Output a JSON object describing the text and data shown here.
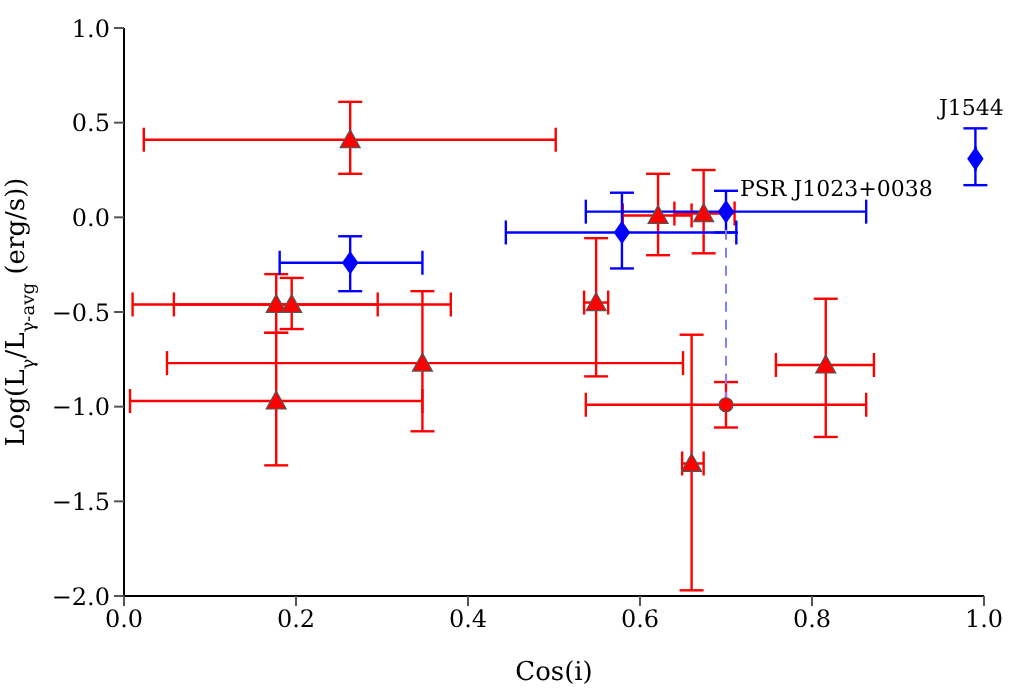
{
  "chart_data": {
    "type": "scatter",
    "xlabel": "Cos(i)",
    "ylabel": "Log(L$_{γ}$/L$_{γ-avg}$ (erg/s))",
    "xlim": [
      0,
      1
    ],
    "ylim": [
      -2,
      1
    ],
    "xticks": [
      {
        "value": 0,
        "label": "0.0"
      },
      {
        "value": 0.2,
        "label": "0.2"
      },
      {
        "value": 0.4,
        "label": "0.4"
      },
      {
        "value": 0.6,
        "label": "0.6"
      },
      {
        "value": 0.8,
        "label": "0.8"
      },
      {
        "value": 1,
        "label": "1.0"
      }
    ],
    "yticks": [
      {
        "value": -2,
        "label": "−2.0"
      },
      {
        "value": -1.5,
        "label": "−1.5"
      },
      {
        "value": -1,
        "label": "−1.0"
      },
      {
        "value": -0.5,
        "label": "−0.5"
      },
      {
        "value": 0,
        "label": "0.0"
      },
      {
        "value": 0.5,
        "label": "0.5"
      },
      {
        "value": 1,
        "label": "1.0"
      }
    ],
    "series": [
      {
        "type": "line",
        "color": "#8080ff",
        "line_style": "dashed",
        "marker": "none",
        "x": [
          0.7,
          0.7
        ],
        "values": [
          0.03,
          -0.99
        ]
      },
      {
        "color": "#ff0000",
        "marker": "triangle",
        "x": [
          0.263,
          0.177,
          0.195,
          0.347,
          0.177,
          0.549,
          0.621,
          0.674,
          0.66,
          0.816
        ],
        "values": [
          0.41,
          -0.46,
          -0.46,
          -0.77,
          -0.97,
          -0.45,
          0.01,
          0.02,
          -1.3,
          -0.78
        ],
        "errors": [
          [
            0.23,
            0.61
          ],
          [
            -0.61,
            -0.3
          ],
          [
            -0.59,
            -0.32
          ],
          [
            -1.13,
            -0.39
          ],
          [
            -1.31,
            -0.61
          ],
          [
            -0.84,
            -0.11
          ],
          [
            -0.2,
            0.23
          ],
          [
            -0.19,
            0.25
          ],
          [
            -1.97,
            -0.62
          ],
          [
            -1.16,
            -0.43
          ]
        ],
        "xerrors": [
          [
            0.023,
            0.502
          ],
          [
            0.01,
            0.38
          ],
          [
            0.058,
            0.295
          ],
          [
            0.05,
            0.65
          ],
          [
            0.007,
            0.347
          ],
          [
            0.535,
            0.563
          ],
          [
            0.58,
            0.66
          ],
          [
            0.64,
            0.71
          ],
          [
            0.649,
            0.674
          ],
          [
            0.758,
            0.872
          ]
        ]
      },
      {
        "color": "#ff0000",
        "marker": "circle",
        "x": [
          0.7
        ],
        "values": [
          -0.99
        ],
        "errors": [
          [
            -1.11,
            -0.87
          ]
        ],
        "xerrors": [
          [
            0.537,
            0.863
          ]
        ]
      },
      {
        "color": "#0000ff",
        "marker": "diamond",
        "x": [
          0.263,
          0.579,
          0.7,
          0.99
        ],
        "values": [
          -0.24,
          -0.08,
          0.03,
          0.31
        ],
        "errors": [
          [
            -0.39,
            -0.1
          ],
          [
            -0.27,
            0.13
          ],
          [
            -0.08,
            0.14
          ],
          [
            0.17,
            0.47
          ]
        ],
        "xerrors": [
          [
            0.181,
            0.347
          ],
          [
            0.444,
            0.712
          ],
          [
            0.537,
            0.863
          ],
          null
        ]
      }
    ],
    "annotations": [
      {
        "text": "J1544",
        "x": 0.99,
        "y": 0.31
      },
      {
        "text": "PSR J1023+0038",
        "x": 0.7,
        "y": 0.03
      }
    ]
  }
}
